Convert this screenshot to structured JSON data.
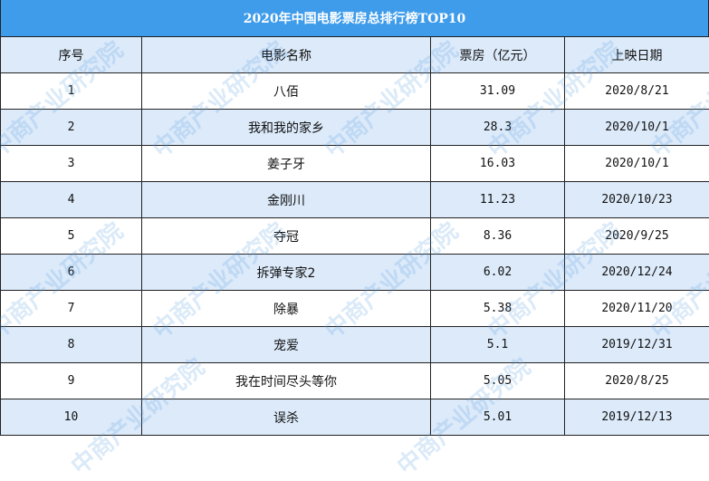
{
  "title": "2020年中国电影票房总排行榜TOP10",
  "columns": [
    "序号",
    "电影名称",
    "票房（亿元）",
    "上映日期"
  ],
  "rows": [
    [
      "1",
      "八佰",
      "31.09",
      "2020/8/21"
    ],
    [
      "2",
      "我和我的家乡",
      "28.3",
      "2020/10/1"
    ],
    [
      "3",
      "姜子牙",
      "16.03",
      "2020/10/1"
    ],
    [
      "4",
      "金刚川",
      "11.23",
      "2020/10/23"
    ],
    [
      "5",
      "夺冠",
      "8.36",
      "2020/9/25"
    ],
    [
      "6",
      "拆弹专家2",
      "6.02",
      "2020/12/24"
    ],
    [
      "7",
      "除暴",
      "5.38",
      "2020/11/20"
    ],
    [
      "8",
      "宠爱",
      "5.1",
      "2019/12/31"
    ],
    [
      "9",
      "我在时间尽头等你",
      "5.05",
      "2020/8/25"
    ],
    [
      "10",
      "误杀",
      "5.01",
      "2019/12/13"
    ]
  ],
  "watermark": "中商产业研究院",
  "colors": {
    "title_bg": "#3f9cea",
    "alt_row": "#dceafa"
  }
}
